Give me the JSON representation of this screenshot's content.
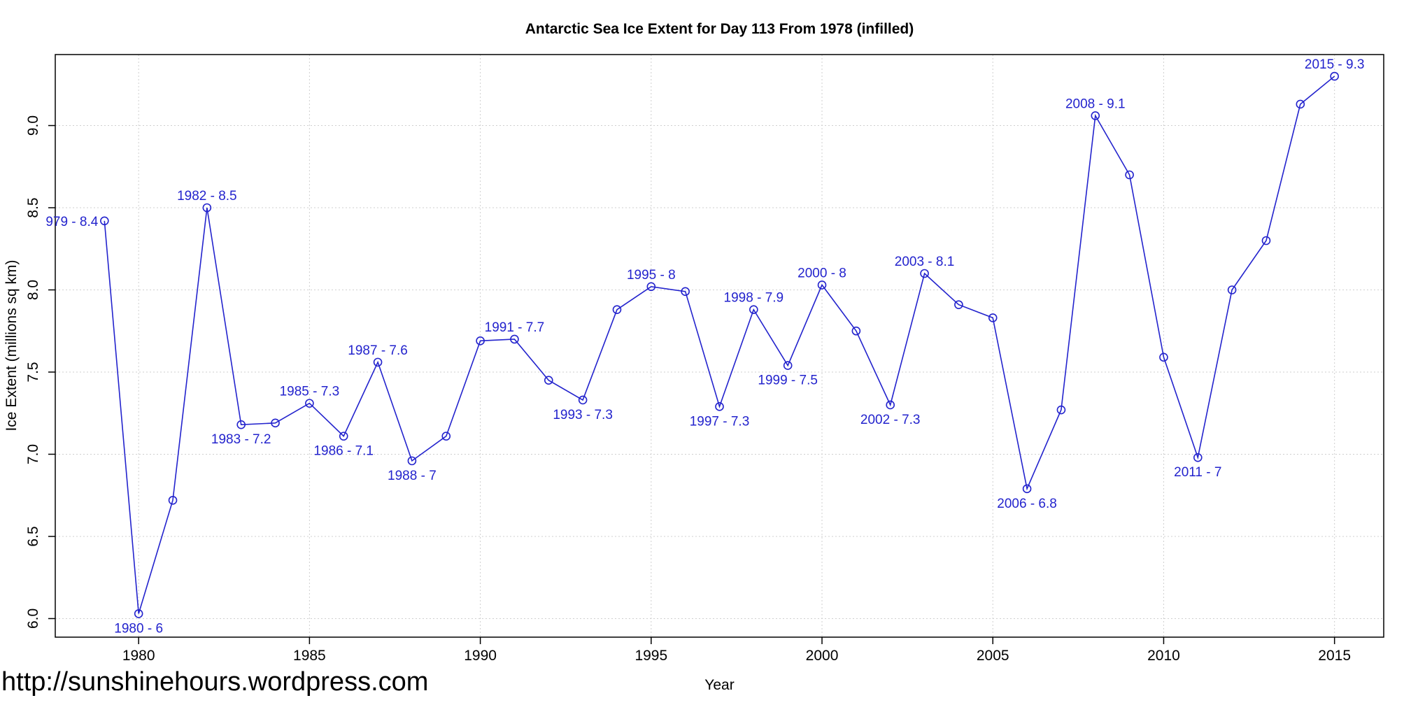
{
  "title": "Antarctic Sea Ice Extent for Day 113 From 1978 (infilled)",
  "footer_url": "http://sunshinehours.wordpress.com",
  "colors": {
    "series": "#2323cd",
    "grid": "#cfcfcf",
    "axis": "#000000",
    "background": "#ffffff"
  },
  "chart_data": {
    "type": "line",
    "title": "Antarctic Sea Ice Extent for Day 113 From 1978 (infilled)",
    "xlabel": "Year",
    "ylabel": "Ice Extent (millions sq km)",
    "x_domain": [
      1977.56,
      2016.44
    ],
    "y_domain": [
      5.887,
      9.432
    ],
    "x_ticks": [
      1980,
      1985,
      1990,
      1995,
      2000,
      2005,
      2010,
      2015
    ],
    "y_ticks": [
      6.0,
      6.5,
      7.0,
      7.5,
      8.0,
      8.5,
      9.0
    ],
    "grid": true,
    "legend_position": "none",
    "marker": "open-circle",
    "points": [
      {
        "year": 1979,
        "value": 8.42,
        "label": "979 - 8.4",
        "label_pos": "left"
      },
      {
        "year": 1980,
        "value": 6.03,
        "label": "1980 - 6",
        "label_pos": "below"
      },
      {
        "year": 1981,
        "value": 6.72,
        "label": null
      },
      {
        "year": 1982,
        "value": 8.5,
        "label": "1982 - 8.5",
        "label_pos": "above"
      },
      {
        "year": 1983,
        "value": 7.18,
        "label": "1983 - 7.2",
        "label_pos": "below"
      },
      {
        "year": 1984,
        "value": 7.19,
        "label": null
      },
      {
        "year": 1985,
        "value": 7.31,
        "label": "1985 - 7.3",
        "label_pos": "above"
      },
      {
        "year": 1986,
        "value": 7.11,
        "label": "1986 - 7.1",
        "label_pos": "below"
      },
      {
        "year": 1987,
        "value": 7.56,
        "label": "1987 - 7.6",
        "label_pos": "above"
      },
      {
        "year": 1988,
        "value": 6.96,
        "label": "1988 - 7",
        "label_pos": "below"
      },
      {
        "year": 1989,
        "value": 7.11,
        "label": null
      },
      {
        "year": 1990,
        "value": 7.69,
        "label": null
      },
      {
        "year": 1991,
        "value": 7.7,
        "label": "1991 - 7.7",
        "label_pos": "above"
      },
      {
        "year": 1992,
        "value": 7.45,
        "label": null
      },
      {
        "year": 1993,
        "value": 7.33,
        "label": "1993 - 7.3",
        "label_pos": "below"
      },
      {
        "year": 1994,
        "value": 7.88,
        "label": null
      },
      {
        "year": 1995,
        "value": 8.02,
        "label": "1995 - 8",
        "label_pos": "above"
      },
      {
        "year": 1996,
        "value": 7.99,
        "label": null
      },
      {
        "year": 1997,
        "value": 7.29,
        "label": "1997 - 7.3",
        "label_pos": "below"
      },
      {
        "year": 1998,
        "value": 7.88,
        "label": "1998 - 7.9",
        "label_pos": "above"
      },
      {
        "year": 1999,
        "value": 7.54,
        "label": "1999 - 7.5",
        "label_pos": "below"
      },
      {
        "year": 2000,
        "value": 8.03,
        "label": "2000 - 8",
        "label_pos": "above"
      },
      {
        "year": 2001,
        "value": 7.75,
        "label": null
      },
      {
        "year": 2002,
        "value": 7.3,
        "label": "2002 - 7.3",
        "label_pos": "below"
      },
      {
        "year": 2003,
        "value": 8.1,
        "label": "2003 - 8.1",
        "label_pos": "above"
      },
      {
        "year": 2004,
        "value": 7.91,
        "label": null
      },
      {
        "year": 2005,
        "value": 7.83,
        "label": null
      },
      {
        "year": 2006,
        "value": 6.79,
        "label": "2006 - 6.8",
        "label_pos": "below"
      },
      {
        "year": 2007,
        "value": 7.27,
        "label": null
      },
      {
        "year": 2008,
        "value": 9.06,
        "label": "2008 - 9.1",
        "label_pos": "above"
      },
      {
        "year": 2009,
        "value": 8.7,
        "label": null
      },
      {
        "year": 2010,
        "value": 7.59,
        "label": null
      },
      {
        "year": 2011,
        "value": 6.98,
        "label": "2011 - 7",
        "label_pos": "below"
      },
      {
        "year": 2012,
        "value": 8.0,
        "label": null
      },
      {
        "year": 2013,
        "value": 8.3,
        "label": null
      },
      {
        "year": 2014,
        "value": 9.13,
        "label": null
      },
      {
        "year": 2015,
        "value": 9.3,
        "label": "2015 - 9.3",
        "label_pos": "above"
      }
    ]
  }
}
